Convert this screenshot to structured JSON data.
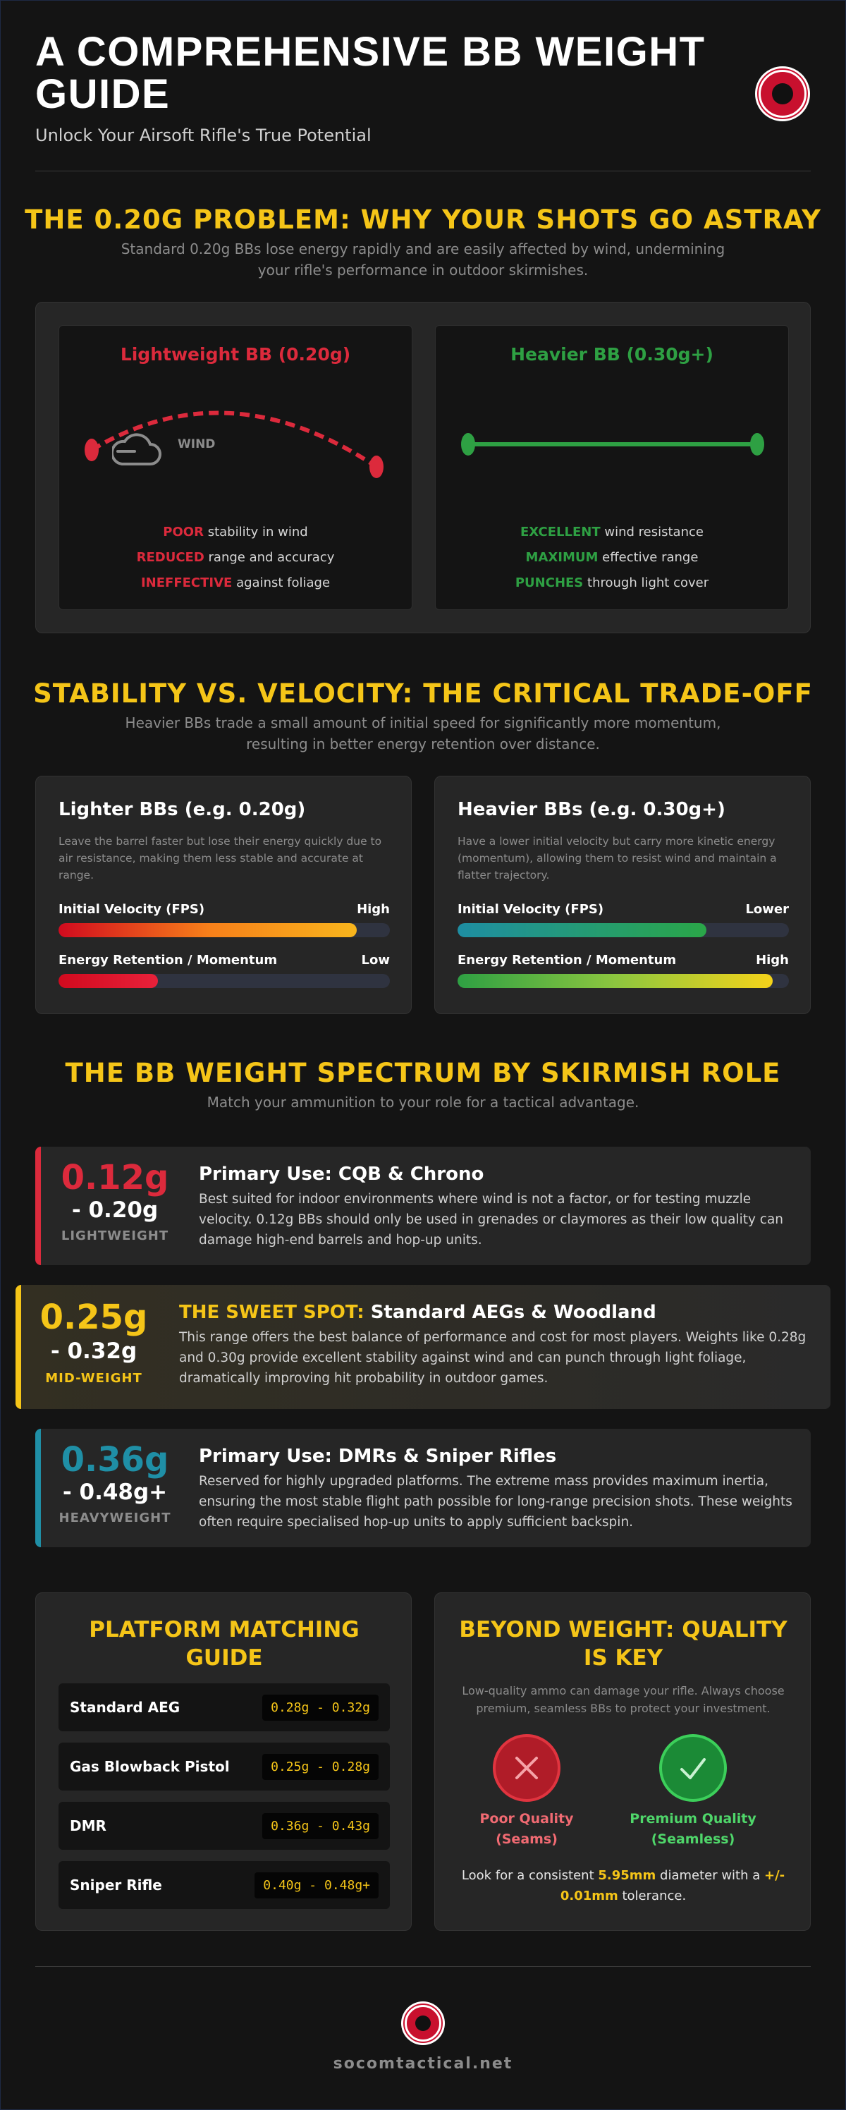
{
  "header": {
    "title": "A COMPREHENSIVE BB WEIGHT GUIDE",
    "subtitle": "Unlock Your Airsoft Rifle's True Potential"
  },
  "problem": {
    "title": "THE 0.20G PROBLEM: WHY YOUR SHOTS GO ASTRAY",
    "description": "Standard 0.20g BBs lose energy rapidly and are easily affected by wind, undermining your rifle's performance in outdoor skirmishes.",
    "light": {
      "title": "Lightweight BB (0.20g)",
      "wind_label": "WIND",
      "stats": [
        {
          "keyword": "POOR",
          "text": "stability in wind"
        },
        {
          "keyword": "REDUCED",
          "text": "range and accuracy"
        },
        {
          "keyword": "INEFFECTIVE",
          "text": "against foliage"
        }
      ]
    },
    "heavy": {
      "title": "Heavier BB (0.30g+)",
      "stats": [
        {
          "keyword": "EXCELLENT",
          "text": "wind resistance"
        },
        {
          "keyword": "MAXIMUM",
          "text": "effective range"
        },
        {
          "keyword": "PUNCHES",
          "text": "through light cover"
        }
      ]
    },
    "colors": {
      "red": "#dc2a3c",
      "green": "#2ea043"
    }
  },
  "tradeoff": {
    "title": "STABILITY VS. VELOCITY: THE CRITICAL TRADE-OFF",
    "description": "Heavier BBs trade a small amount of initial speed for significantly more momentum, resulting in better energy retention over distance.",
    "cards": [
      {
        "title": "Lighter BBs (e.g. 0.20g)",
        "text": "Leave the barrel faster but lose their energy quickly due to air resistance, making them less stable and accurate at range.",
        "bars": [
          {
            "label": "Initial Velocity (FPS)",
            "rating": "High",
            "level": 0.9
          },
          {
            "label": "Energy Retention / Momentum",
            "rating": "Low",
            "level": 0.3
          }
        ]
      },
      {
        "title": "Heavier BBs (e.g. 0.30g+)",
        "text": "Have a lower initial velocity but carry more kinetic energy (momentum), allowing them to resist wind and maintain a flatter trajectory.",
        "bars": [
          {
            "label": "Initial Velocity (FPS)",
            "rating": "Lower",
            "level": 0.75
          },
          {
            "label": "Energy Retention / Momentum",
            "rating": "High",
            "level": 0.95
          }
        ]
      }
    ]
  },
  "spectrum": {
    "title": "THE BB WEIGHT SPECTRUM BY SKIRMISH ROLE",
    "description": "Match your ammunition to your role for a tactical advantage.",
    "rows": [
      {
        "weight_top": "0.12g",
        "weight_bottom": "- 0.20g",
        "class": "LIGHTWEIGHT",
        "heading_accent": "",
        "heading": "Primary Use: CQB & Chrono",
        "text": "Best suited for indoor environments where wind is not a factor, or for testing muzzle velocity. 0.12g BBs should only be used in grenades or claymores as their low quality can damage high-end barrels and hop-up units.",
        "color": "#dc2a3c"
      },
      {
        "weight_top": "0.25g",
        "weight_bottom": "- 0.32g",
        "class": "MID-WEIGHT",
        "heading_accent": "THE SWEET SPOT:",
        "heading": "Standard AEGs & Woodland",
        "text": "This range offers the best balance of performance and cost for most players. Weights like 0.28g and 0.30g provide excellent stability against wind and can punch through light foliage, dramatically improving hit probability in outdoor games.",
        "color": "#f5c518"
      },
      {
        "weight_top": "0.36g",
        "weight_bottom": "- 0.48g+",
        "class": "HEAVYWEIGHT",
        "heading_accent": "",
        "heading": "Primary Use: DMRs & Sniper Rifles",
        "text": "Reserved for highly upgraded platforms. The extreme mass provides maximum inertia, ensuring the most stable flight path possible for long-range precision shots. These weights often require specialised hop-up units to apply sufficient backspin.",
        "color": "#1f8fa6"
      }
    ]
  },
  "platform": {
    "title": "PLATFORM MATCHING GUIDE",
    "items": [
      {
        "name": "Standard AEG",
        "range": "0.28g - 0.32g"
      },
      {
        "name": "Gas Blowback Pistol",
        "range": "0.25g - 0.28g"
      },
      {
        "name": "DMR",
        "range": "0.36g - 0.43g"
      },
      {
        "name": "Sniper Rifle",
        "range": "0.40g - 0.48g+"
      }
    ]
  },
  "quality": {
    "title": "BEYOND WEIGHT: QUALITY IS KEY",
    "description": "Low-quality ammo can damage your rifle. Always choose premium, seamless BBs to protect your investment.",
    "poor": {
      "label1": "Poor Quality",
      "label2": "(Seams)",
      "icon": "x-icon"
    },
    "premium": {
      "label1": "Premium Quality",
      "label2": "(Seamless)",
      "icon": "check-icon"
    },
    "tol_1": "Look for a consistent ",
    "tol_2": "5.95mm",
    "tol_3": " diameter with a ",
    "tol_4": "+/-",
    "tol_5": "0.01mm",
    "tol_6": " tolerance."
  },
  "footer": {
    "site": "socomtactical.net"
  }
}
